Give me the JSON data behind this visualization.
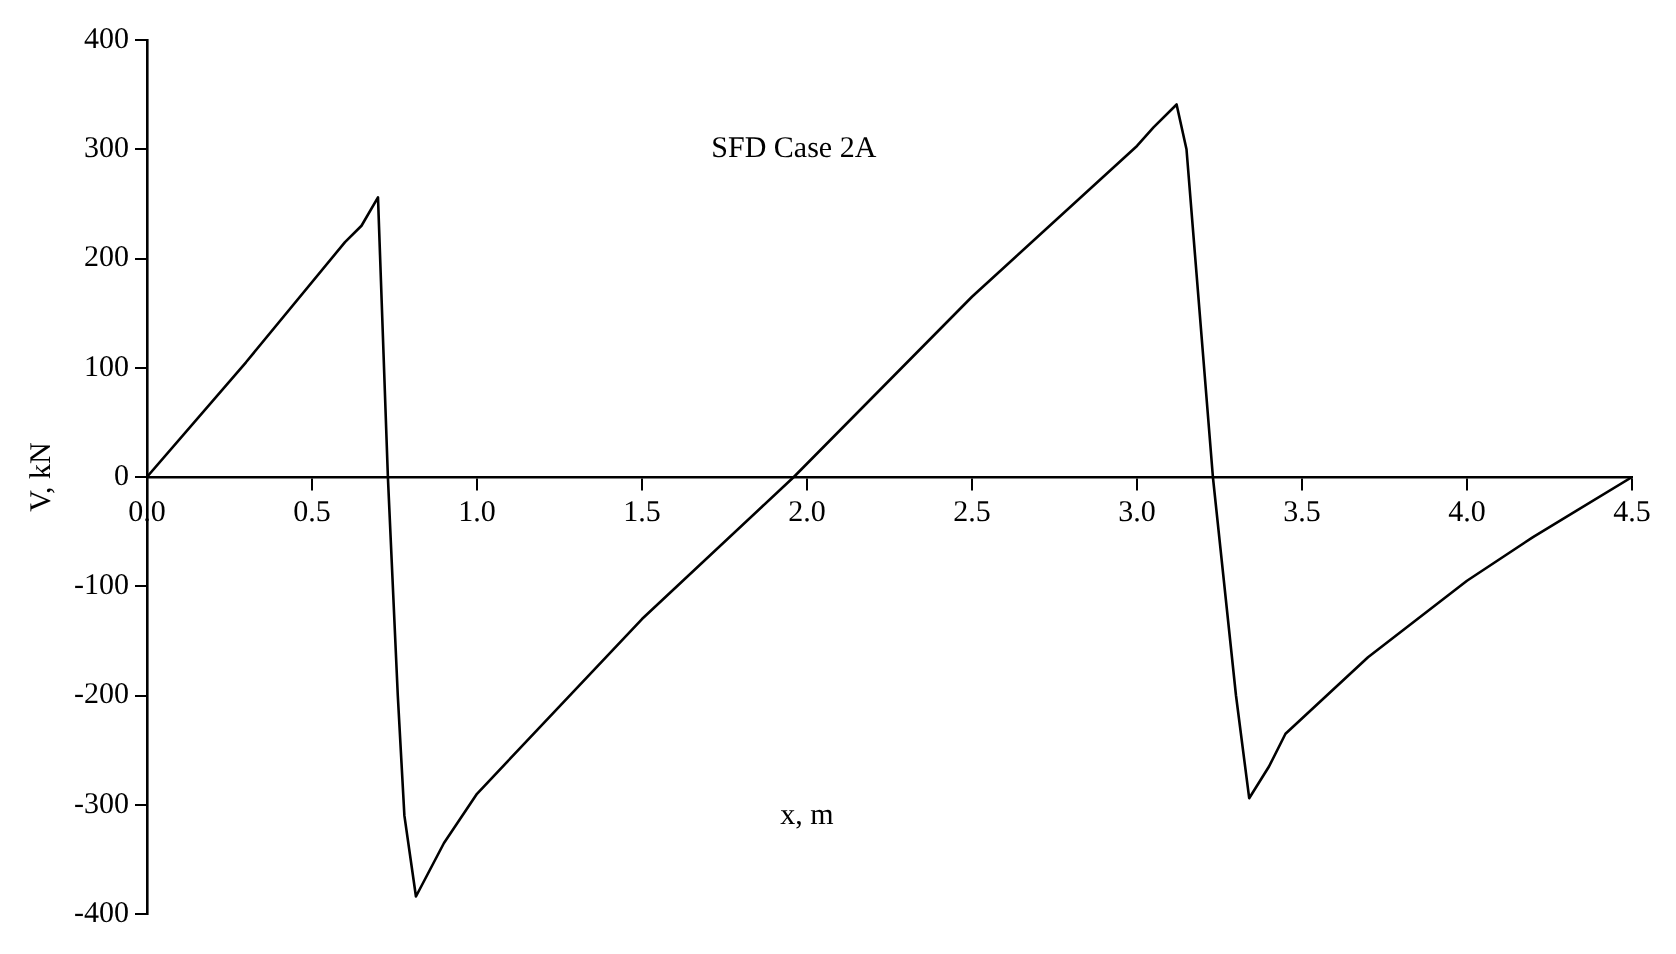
{
  "chart_data": {
    "type": "line",
    "title": "SFD Case 2A",
    "xlabel": "x, m",
    "ylabel": "V, kN",
    "xlim": [
      0,
      4.5
    ],
    "xticks": [
      {
        "value": 0,
        "label": "0.0"
      },
      {
        "value": 0.5,
        "label": "0.5"
      },
      {
        "value": 1,
        "label": "1.0"
      },
      {
        "value": 1.5,
        "label": "1.5"
      },
      {
        "value": 2,
        "label": "2.0"
      },
      {
        "value": 2.5,
        "label": "2.5"
      },
      {
        "value": 3,
        "label": "3.0"
      },
      {
        "value": 3.5,
        "label": "3.5"
      },
      {
        "value": 4,
        "label": "4.0"
      },
      {
        "value": 4.5,
        "label": "4.5"
      }
    ],
    "ylim": [
      -400,
      400
    ],
    "yticks": [
      -400,
      -300,
      -200,
      -100,
      0,
      100,
      200,
      300,
      400
    ],
    "grid": false,
    "legend": false,
    "marker": "none",
    "line_style": "solid",
    "series": [
      {
        "color": "#000000",
        "x": [
          0,
          0.3,
          0.6,
          0.65,
          0.7,
          0.73,
          0.76,
          0.78,
          0.815,
          0.9,
          1.0,
          1.5,
          1.96,
          2.5,
          3.0,
          3.05,
          3.12,
          3.15,
          3.23,
          3.3,
          3.34,
          3.4,
          3.45,
          3.7,
          4.0,
          4.2,
          4.5
        ],
        "values": [
          0,
          105,
          215,
          230,
          256,
          0,
          -200,
          -310,
          -384,
          -335,
          -290,
          -130,
          0,
          165,
          303,
          320,
          341,
          300,
          0,
          -200,
          -294,
          -265,
          -235,
          -165,
          -95,
          -55,
          0
        ]
      }
    ]
  }
}
